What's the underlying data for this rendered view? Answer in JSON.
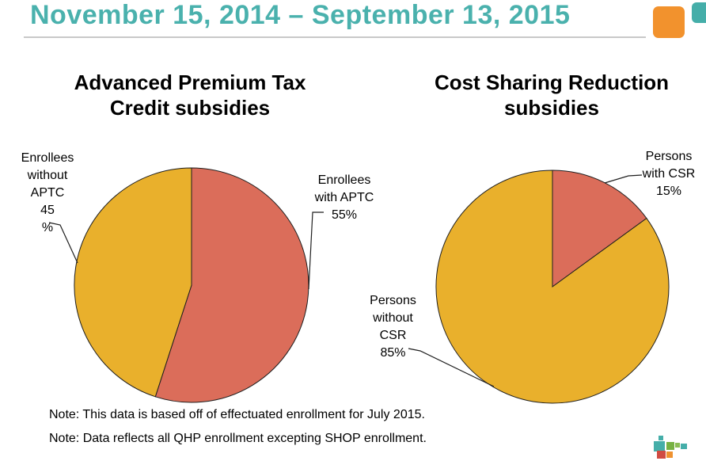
{
  "header": {
    "title": "November 15, 2014 – September 13, 2015"
  },
  "charts": [
    {
      "title": "Advanced Premium Tax\nCredit subsidies",
      "labels": {
        "left": "Enrollees\nwithout\nAPTC\n45\n%",
        "right": "Enrollees\nwith APTC\n55%"
      }
    },
    {
      "title": "Cost Sharing Reduction\nsubsidies",
      "labels": {
        "right": "Persons\nwith CSR\n15%",
        "left": "Persons\nwithout\nCSR\n85%"
      }
    }
  ],
  "notes": [
    "Note: This data is based off of effectuated enrollment for July 2015.",
    "Note: Data reflects all QHP enrollment excepting SHOP enrollment."
  ],
  "colors": {
    "title_teal": "#4AB1AD",
    "accent_orange": "#F2922D",
    "accent_teal": "#45AEA9",
    "rule_gray": "#C9C9C9",
    "pie_gold": "#E9B02C",
    "pie_red": "#DB6D5A",
    "outline": "#1f1f1f"
  },
  "chart_data": [
    {
      "type": "pie",
      "title": "Advanced Premium Tax Credit subsidies",
      "units": "percent",
      "start_angle_deg": 0,
      "direction": "clockwise",
      "slices": [
        {
          "label": "Enrollees with APTC",
          "value": 55,
          "color": "#DB6D5A"
        },
        {
          "label": "Enrollees without APTC",
          "value": 45,
          "color": "#E9B02C"
        }
      ]
    },
    {
      "type": "pie",
      "title": "Cost Sharing Reduction subsidies",
      "units": "percent",
      "start_angle_deg": 0,
      "direction": "clockwise",
      "slices": [
        {
          "label": "Persons with CSR",
          "value": 15,
          "color": "#DB6D5A"
        },
        {
          "label": "Persons without CSR",
          "value": 85,
          "color": "#E9B02C"
        }
      ]
    }
  ],
  "logo": {
    "name": "pixel-blocks-logo"
  }
}
